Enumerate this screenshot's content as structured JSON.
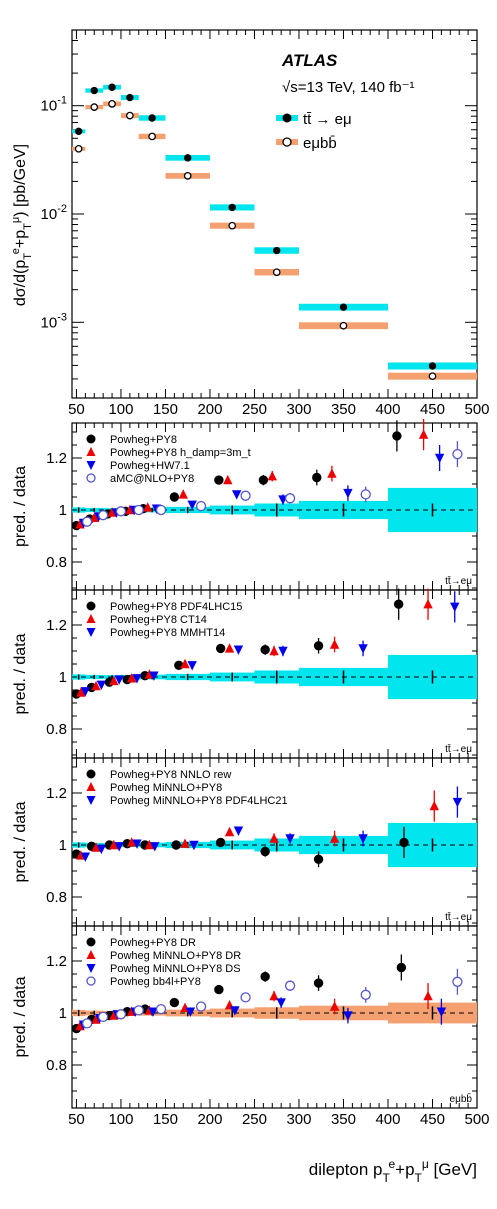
{
  "experiment": "ATLAS",
  "energy_label": "√s=13 TeV, 140 fb⁻¹",
  "x_axis_label": "dilepton p_T^e+p_T^μ [GeV]",
  "colors": {
    "cyan": "#00e5ee",
    "orange": "#f5a070",
    "red": "#ee0000",
    "blue": "#0000ee",
    "purple": "#5555cc",
    "black": "#000000"
  },
  "chart_data": [
    {
      "type": "scatter",
      "panel": "main",
      "ylabel": "dσ/d(p_T^e+p_T^μ) [pb/GeV]",
      "yscale": "log",
      "ylim": [
        0.0002,
        0.5
      ],
      "xlim": [
        45,
        500
      ],
      "bins": [
        [
          45,
          60
        ],
        [
          60,
          80
        ],
        [
          80,
          100
        ],
        [
          100,
          120
        ],
        [
          120,
          150
        ],
        [
          150,
          200
        ],
        [
          200,
          250
        ],
        [
          250,
          300
        ],
        [
          300,
          400
        ],
        [
          400,
          500
        ]
      ],
      "x_ticks": [
        50,
        100,
        150,
        200,
        250,
        300,
        350,
        400,
        450,
        500
      ],
      "series": [
        {
          "name": "tt̄ → eμ",
          "marker": "filled-circle",
          "band_color": "#00e5ee",
          "x": [
            52.5,
            70,
            90,
            110,
            135,
            175,
            225,
            275,
            350,
            450
          ],
          "values": [
            0.058,
            0.138,
            0.148,
            0.119,
            0.077,
            0.033,
            0.0115,
            0.0046,
            0.00138,
            0.000395
          ]
        },
        {
          "name": "eμbb̄",
          "marker": "open-circle",
          "band_color": "#f5a070",
          "x": [
            52.5,
            70,
            90,
            110,
            135,
            175,
            225,
            275,
            350,
            450
          ],
          "values": [
            0.04,
            0.097,
            0.104,
            0.081,
            0.052,
            0.0225,
            0.0078,
            0.0029,
            0.00093,
            0.000318
          ]
        }
      ]
    },
    {
      "type": "scatter",
      "panel": "ratio",
      "ylabel": "pred. / data",
      "corner_label": "tt̄→eμ",
      "ylim": [
        0.7,
        1.3
      ],
      "y_ticks": [
        0.8,
        1,
        1.2
      ],
      "band_color": "#00e5ee",
      "band_halfwidths": [
        0.01,
        0.008,
        0.007,
        0.008,
        0.009,
        0.012,
        0.017,
        0.025,
        0.035,
        0.085
      ],
      "series": [
        {
          "name": "Powheg+PY8",
          "marker": "filled-circle",
          "color": "#000000",
          "x": [
            50,
            65,
            85,
            105,
            125,
            160,
            210,
            260,
            320,
            410
          ],
          "values": [
            0.94,
            0.965,
            0.985,
            0.995,
            1.005,
            1.05,
            1.115,
            1.115,
            1.125,
            1.285
          ],
          "errors": [
            0,
            0,
            0,
            0,
            0,
            0,
            0,
            0.02,
            0.03,
            0.06
          ]
        },
        {
          "name": "Powheg+PY8 h_damp=3m_t",
          "marker": "triangle-up",
          "color": "#ee0000",
          "x": [
            54,
            70,
            90,
            110,
            130,
            170,
            220,
            270,
            337,
            440
          ],
          "values": [
            0.945,
            0.97,
            0.99,
            1.0,
            1.01,
            1.06,
            1.115,
            1.13,
            1.14,
            1.29
          ],
          "errors": [
            0,
            0,
            0,
            0,
            0,
            0,
            0,
            0.02,
            0.03,
            0.06
          ]
        },
        {
          "name": "Powheg+HW7.1",
          "marker": "triangle-down",
          "color": "#0000ee",
          "x": [
            58,
            75,
            95,
            115,
            140,
            180,
            230,
            282,
            355,
            458
          ],
          "values": [
            0.95,
            0.975,
            0.99,
            1.0,
            1.005,
            1.02,
            1.06,
            1.04,
            1.065,
            1.2
          ],
          "errors": [
            0,
            0,
            0,
            0,
            0,
            0,
            0,
            0.02,
            0.03,
            0.05
          ]
        },
        {
          "name": "aMC@NLO+PY8",
          "marker": "open-circle",
          "color": "#5555cc",
          "x": [
            62,
            80,
            100,
            120,
            145,
            190,
            240,
            290,
            375,
            478
          ],
          "values": [
            0.955,
            0.98,
            0.995,
            1.0,
            1.0,
            1.015,
            1.055,
            1.045,
            1.06,
            1.215
          ],
          "errors": [
            0,
            0,
            0,
            0,
            0,
            0,
            0,
            0.02,
            0.03,
            0.05
          ]
        }
      ]
    },
    {
      "type": "scatter",
      "panel": "ratio",
      "ylabel": "pred. / data",
      "corner_label": "tt̄→eμ",
      "ylim": [
        0.7,
        1.3
      ],
      "y_ticks": [
        0.8,
        1,
        1.2
      ],
      "band_color": "#00e5ee",
      "band_halfwidths": [
        0.01,
        0.008,
        0.007,
        0.008,
        0.009,
        0.012,
        0.017,
        0.025,
        0.035,
        0.085
      ],
      "series": [
        {
          "name": "Powheg+PY8 PDF4LHC15",
          "marker": "filled-circle",
          "color": "#000000",
          "x": [
            50,
            67,
            87,
            107,
            127,
            165,
            212,
            262,
            322,
            412
          ],
          "values": [
            0.935,
            0.96,
            0.98,
            0.99,
            1.005,
            1.045,
            1.11,
            1.105,
            1.12,
            1.28
          ],
          "errors": [
            0,
            0,
            0,
            0,
            0,
            0,
            0,
            0.02,
            0.03,
            0.06
          ]
        },
        {
          "name": "Powheg+PY8 CT14",
          "marker": "triangle-up",
          "color": "#ee0000",
          "x": [
            55,
            72,
            92,
            112,
            132,
            172,
            222,
            272,
            340,
            445
          ],
          "values": [
            0.94,
            0.965,
            0.985,
            0.995,
            1.01,
            1.05,
            1.11,
            1.1,
            1.125,
            1.28
          ],
          "errors": [
            0,
            0,
            0,
            0,
            0,
            0,
            0,
            0.02,
            0.03,
            0.06
          ]
        },
        {
          "name": "Powheg+PY8 MMHT14",
          "marker": "triangle-down",
          "color": "#0000ee",
          "x": [
            60,
            78,
            98,
            118,
            137,
            180,
            232,
            282,
            372,
            475
          ],
          "values": [
            0.945,
            0.97,
            0.99,
            0.995,
            1.005,
            1.045,
            1.105,
            1.1,
            1.11,
            1.27
          ],
          "errors": [
            0,
            0,
            0,
            0,
            0,
            0,
            0,
            0.02,
            0.03,
            0.06
          ]
        }
      ]
    },
    {
      "type": "scatter",
      "panel": "ratio",
      "ylabel": "pred. / data",
      "corner_label": "tt̄→eμ",
      "ylim": [
        0.7,
        1.3
      ],
      "y_ticks": [
        0.8,
        1,
        1.2
      ],
      "band_color": "#00e5ee",
      "band_halfwidths": [
        0.01,
        0.008,
        0.007,
        0.008,
        0.009,
        0.012,
        0.017,
        0.025,
        0.035,
        0.085
      ],
      "series": [
        {
          "name": "Powheg+PY8 NNLO rew",
          "marker": "filled-circle",
          "color": "#000000",
          "x": [
            50,
            67,
            87,
            107,
            127,
            162,
            212,
            262,
            322,
            418
          ],
          "values": [
            0.965,
            0.995,
            1.0,
            1.005,
            1.0,
            1.0,
            1.01,
            0.975,
            0.945,
            1.01
          ],
          "errors": [
            0,
            0,
            0,
            0,
            0,
            0,
            0,
            0.02,
            0.03,
            0.06
          ]
        },
        {
          "name": "Powheg MiNNLO+PY8",
          "marker": "triangle-up",
          "color": "#ee0000",
          "x": [
            55,
            72,
            92,
            112,
            132,
            172,
            222,
            272,
            340,
            452
          ],
          "values": [
            0.96,
            0.99,
            1.0,
            1.01,
            1.0,
            1.005,
            1.05,
            1.025,
            1.025,
            1.15
          ],
          "errors": [
            0,
            0,
            0,
            0,
            0,
            0,
            0,
            0.02,
            0.03,
            0.06
          ]
        },
        {
          "name": "Powheg MiNNLO+PY8 PDF4LHC21",
          "marker": "triangle-down",
          "color": "#0000ee",
          "x": [
            60,
            78,
            98,
            118,
            138,
            182,
            232,
            290,
            372,
            478
          ],
          "values": [
            0.955,
            0.985,
            0.995,
            1.005,
            0.995,
            1.0,
            1.055,
            1.025,
            1.025,
            1.165
          ],
          "errors": [
            0,
            0,
            0,
            0,
            0,
            0,
            0,
            0.02,
            0.03,
            0.06
          ]
        }
      ]
    },
    {
      "type": "scatter",
      "panel": "ratio",
      "ylabel": "pred. / data",
      "corner_label": "eμbb̄",
      "ylim": [
        0.7,
        1.3
      ],
      "y_ticks": [
        0.8,
        1,
        1.2
      ],
      "band_color": "#f5a070",
      "band_halfwidths": [
        0.012,
        0.009,
        0.008,
        0.009,
        0.01,
        0.013,
        0.017,
        0.022,
        0.028,
        0.04
      ],
      "series": [
        {
          "name": "Powheg+PY8 DR",
          "marker": "filled-circle",
          "color": "#000000",
          "x": [
            50,
            67,
            87,
            107,
            127,
            160,
            210,
            262,
            322,
            415
          ],
          "values": [
            0.94,
            0.975,
            0.99,
            1.005,
            1.015,
            1.04,
            1.09,
            1.14,
            1.115,
            1.175
          ],
          "errors": [
            0,
            0,
            0,
            0,
            0,
            0,
            0,
            0.02,
            0.03,
            0.05
          ]
        },
        {
          "name": "Powheg MiNNLO+PY8 DR",
          "marker": "triangle-up",
          "color": "#ee0000",
          "x": [
            54,
            72,
            92,
            112,
            132,
            172,
            222,
            272,
            340,
            445
          ],
          "values": [
            0.95,
            0.975,
            0.99,
            1.005,
            1.01,
            1.02,
            1.03,
            1.065,
            1.025,
            1.065
          ],
          "errors": [
            0,
            0,
            0,
            0,
            0,
            0,
            0,
            0.02,
            0.03,
            0.05
          ]
        },
        {
          "name": "Powheg MiNNLO+PY8 DS",
          "marker": "triangle-down",
          "color": "#0000ee",
          "x": [
            58,
            76,
            96,
            116,
            136,
            178,
            228,
            280,
            355,
            460
          ],
          "values": [
            0.955,
            0.98,
            0.995,
            1.005,
            1.005,
            1.005,
            1.01,
            1.04,
            0.99,
            1.005
          ],
          "errors": [
            0,
            0,
            0,
            0,
            0,
            0,
            0,
            0.02,
            0.03,
            0.05
          ]
        },
        {
          "name": "Powheg bb4l+PY8",
          "marker": "open-circle",
          "color": "#5555cc",
          "x": [
            62,
            80,
            100,
            120,
            145,
            190,
            240,
            290,
            375,
            478
          ],
          "values": [
            0.96,
            0.985,
            0.995,
            1.01,
            1.015,
            1.025,
            1.06,
            1.105,
            1.07,
            1.12
          ],
          "errors": [
            0,
            0,
            0,
            0,
            0,
            0,
            0,
            0.02,
            0.03,
            0.05
          ]
        }
      ]
    }
  ]
}
